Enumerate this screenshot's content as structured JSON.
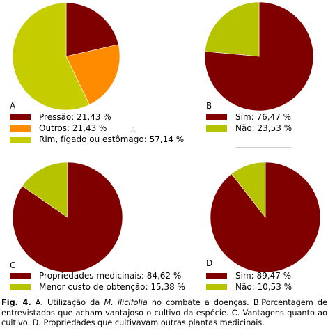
{
  "colors": {
    "dark_red": "#800000",
    "orange": "#ff8c00",
    "yellow_green": "#c5cd00",
    "olive_green": "#b5c300"
  },
  "chart_data": [
    {
      "type": "pie",
      "panel_label": "A",
      "slices": [
        {
          "label": "Pressão: 21,43 %",
          "value": 21.43,
          "color": "#800000"
        },
        {
          "label": "Outros: 21,43 %",
          "value": 21.43,
          "color": "#ff8c00"
        },
        {
          "label": "Rim, fígado ou estômago: 57,14 %",
          "value": 57.14,
          "color": "#c5cd00"
        }
      ]
    },
    {
      "type": "pie",
      "panel_label": "B",
      "slices": [
        {
          "label": "Sim: 76,47 %",
          "value": 76.47,
          "color": "#800000"
        },
        {
          "label": "Não: 23,53 %",
          "value": 23.53,
          "color": "#b5c300"
        }
      ]
    },
    {
      "type": "pie",
      "panel_label": "C",
      "slices": [
        {
          "label": "Propriedades medicinais: 84,62 %",
          "value": 84.62,
          "color": "#800000"
        },
        {
          "label": "Menor custo de obtenção: 15,38 %",
          "value": 15.38,
          "color": "#b5c300"
        }
      ]
    },
    {
      "type": "pie",
      "panel_label": "D",
      "slices": [
        {
          "label": "Sim: 89,47 %",
          "value": 89.47,
          "color": "#800000"
        },
        {
          "label": "Não: 10,53 %",
          "value": 10.53,
          "color": "#b5c300"
        }
      ]
    }
  ],
  "stray_label": "A",
  "caption": {
    "fig_label": "Fig. 4.",
    "part1": " A. Utilização da ",
    "species": "M. ilicifolia",
    "part2": " no combate a doenças. B.Porcentagem de entrevistados que acham vantajoso o cultivo da espécie. C. Vantagens quanto ao cultivo. D. Propriedades que cultivavam outras plantas medicinais."
  }
}
